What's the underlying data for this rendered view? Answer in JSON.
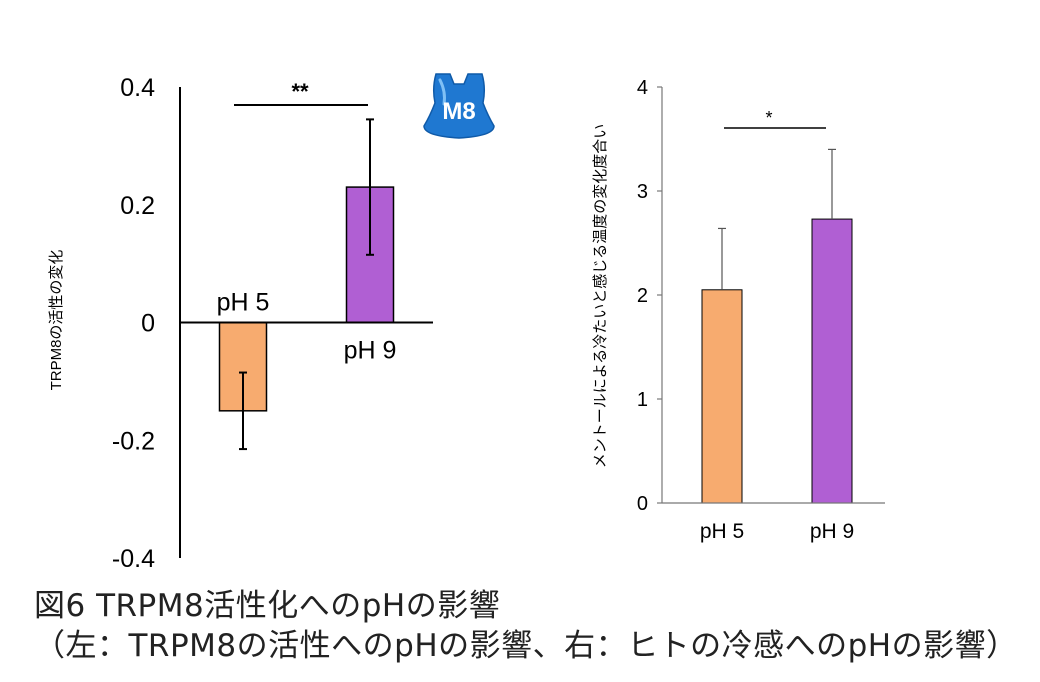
{
  "chart_data": [
    {
      "type": "bar",
      "ylabel": "TRPM8の活性の変化",
      "categories": [
        "pH 5",
        "pH 9"
      ],
      "values": [
        -0.15,
        0.23
      ],
      "error": [
        0.065,
        0.115
      ],
      "ylim": [
        -0.4,
        0.4
      ],
      "yticks": [
        0.4,
        0.2,
        0,
        -0.2,
        -0.4
      ],
      "ytick_labels": [
        "0.4",
        "0.2",
        "0",
        "-0.2",
        "-0.4"
      ],
      "colors": [
        "#f7ab6f",
        "#b05fd3"
      ],
      "significance": "**",
      "badge": "M8",
      "badge_color": "#1f78d1"
    },
    {
      "type": "bar",
      "ylabel": "メントールによる冷たいと感じる温度の変化度合い",
      "categories": [
        "pH 5",
        "pH 9"
      ],
      "values": [
        2.05,
        2.73
      ],
      "error": [
        0.59,
        0.67
      ],
      "ylim": [
        0,
        4
      ],
      "yticks": [
        4,
        3,
        2,
        1,
        0
      ],
      "ytick_labels": [
        "4",
        "3",
        "2",
        "1",
        "0"
      ],
      "colors": [
        "#f7ab6f",
        "#b05fd3"
      ],
      "significance": "*"
    }
  ],
  "caption": {
    "line1": "図6 TRPM8活性化へのpHの影響",
    "line2": "（左：TRPM8の活性へのpHの影響、右：ヒトの冷感へのpHの影響）"
  }
}
